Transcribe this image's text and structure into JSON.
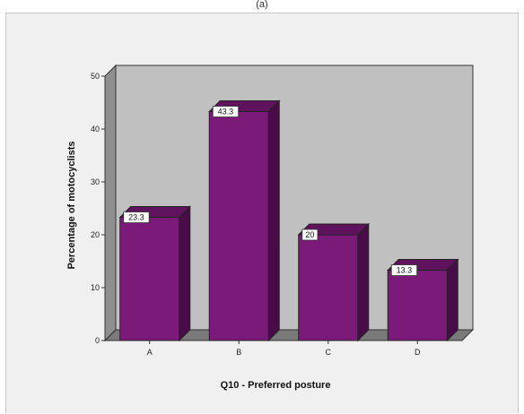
{
  "header": {
    "text": "(a)"
  },
  "chart_data": {
    "type": "bar",
    "categories": [
      "A",
      "B",
      "C",
      "D"
    ],
    "values": [
      23.3,
      43.3,
      20,
      13.3
    ],
    "data_labels": [
      "23.3",
      "43.3",
      "20",
      "13.3"
    ],
    "title": "",
    "xlabel": "Q10 - Preferred posture",
    "ylabel": "Percentage of motocyclists",
    "ylim": [
      0,
      50
    ],
    "yticks": [
      0,
      10,
      20,
      30,
      40,
      50
    ],
    "grid": false,
    "legend": "none",
    "colors": {
      "bar_front": "#7b1a78",
      "bar_side": "#4a0c48",
      "bar_top": "#5f135c",
      "plot_back": "#c0c0c0",
      "plot_floor": "#7a7a7a",
      "plot_left_wall": "#8f8f8f",
      "frame_background": "#f0f0f0"
    }
  }
}
